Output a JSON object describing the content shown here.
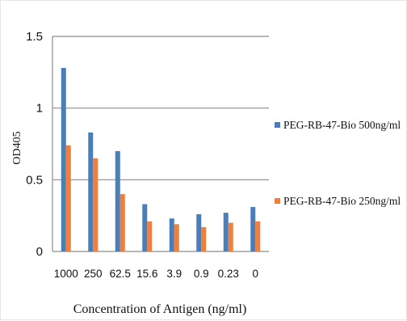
{
  "chart_data": {
    "type": "bar",
    "categories": [
      "1000",
      "250",
      "62.5",
      "15.6",
      "3.9",
      "0.9",
      "0.23",
      "0"
    ],
    "series": [
      {
        "name": "PEG-RB-47-Bio 500ng/ml",
        "color": "#4a7ebb",
        "values": [
          1.28,
          0.83,
          0.7,
          0.33,
          0.23,
          0.26,
          0.27,
          0.31
        ]
      },
      {
        "name": "PEG-RB-47-Bio 250ng/ml",
        "color": "#f07f3c",
        "values": [
          0.74,
          0.65,
          0.4,
          0.21,
          0.19,
          0.17,
          0.2,
          0.21
        ]
      }
    ],
    "title": "",
    "xlabel": "Concentration of Antigen (ng/ml)",
    "ylabel": "OD405",
    "ylim": [
      0,
      1.5
    ],
    "yticks": [
      "0",
      "0.5",
      "1",
      "1.5"
    ],
    "grid": true,
    "legend": "right"
  }
}
